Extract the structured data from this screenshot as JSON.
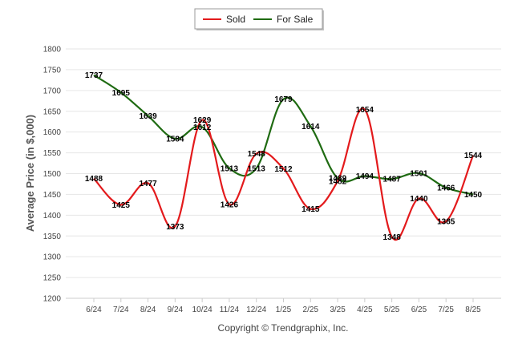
{
  "chart_data": {
    "type": "line",
    "categories": [
      "6/24",
      "7/24",
      "8/24",
      "9/24",
      "10/24",
      "11/24",
      "12/24",
      "1/25",
      "2/25",
      "3/25",
      "4/25",
      "5/25",
      "6/25",
      "7/25",
      "8/25"
    ],
    "series": [
      {
        "name": "Sold",
        "color": "#e31a1c",
        "values": [
          1488,
          1425,
          1477,
          1373,
          1629,
          1426,
          1548,
          1512,
          1415,
          1482,
          1654,
          1348,
          1440,
          1385,
          1544
        ]
      },
      {
        "name": "For Sale",
        "color": "#1f6b12",
        "values": [
          1737,
          1695,
          1639,
          1584,
          1612,
          1513,
          1513,
          1679,
          1614,
          1489,
          1494,
          1487,
          1501,
          1466,
          1450
        ]
      }
    ],
    "ylabel": "Average Price (in $,000)",
    "xlabel": "",
    "ylim": [
      1200,
      1800
    ],
    "yticks": [
      1200,
      1250,
      1300,
      1350,
      1400,
      1450,
      1500,
      1550,
      1600,
      1650,
      1700,
      1750,
      1800
    ],
    "grid": true,
    "legend": "top-center",
    "footer": "Copyright © Trendgraphix, Inc."
  }
}
